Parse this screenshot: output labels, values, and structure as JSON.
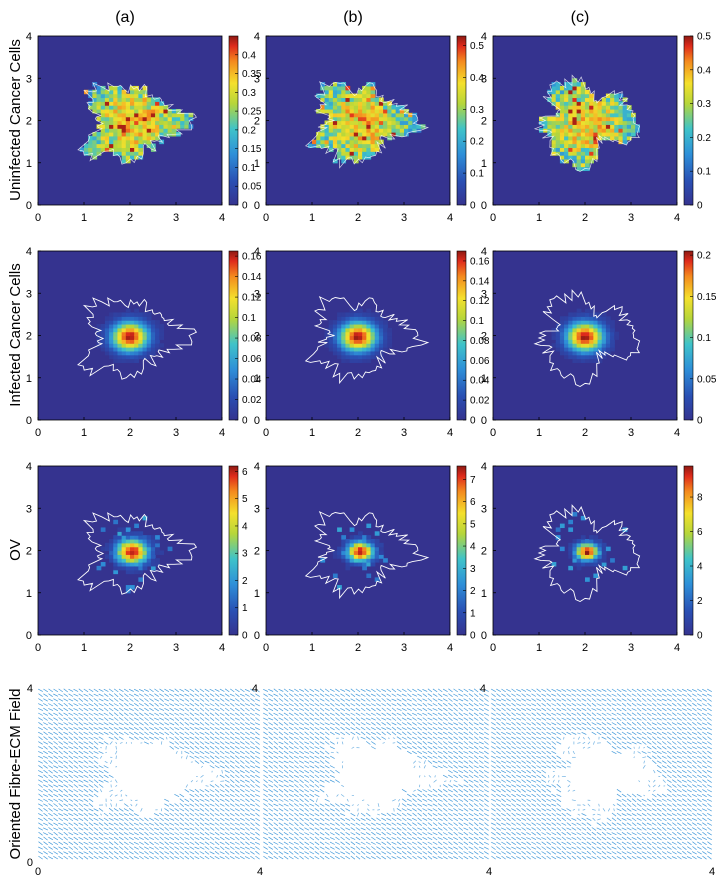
{
  "chart_data": {
    "type": "heatmap",
    "column_labels": [
      "(a)",
      "(b)",
      "(c)"
    ],
    "row_labels": [
      "Uninfected Cancer Cells",
      "Infected Cancer Cells",
      "OV",
      "Oriented Fibre-ECM Field"
    ],
    "x_ticks": [
      "0",
      "1",
      "2",
      "3",
      "4"
    ],
    "y_ticks": [
      "0",
      "1",
      "2",
      "3",
      "4"
    ],
    "xlim": [
      0,
      4
    ],
    "ylim": [
      0,
      4
    ],
    "colormap": "jet",
    "colors": {
      "background": "#35338f",
      "boundary": "#ffffff",
      "fibre": "#2f8fd6"
    },
    "heatmaps": [
      {
        "row": 0,
        "col": 0,
        "panel": "uninfected-a",
        "field": "uninfected",
        "seed": 11,
        "colorbar": {
          "min": 0,
          "max": 0.45,
          "ticks": [
            "0",
            "0.05",
            "0.1",
            "0.15",
            "0.2",
            "0.25",
            "0.3",
            "0.35",
            "0.4"
          ]
        }
      },
      {
        "row": 0,
        "col": 1,
        "panel": "uninfected-b",
        "field": "uninfected",
        "seed": 23,
        "colorbar": {
          "min": 0,
          "max": 0.53,
          "ticks": [
            "0",
            "0.1",
            "0.2",
            "0.3",
            "0.4",
            "0.5"
          ]
        }
      },
      {
        "row": 0,
        "col": 2,
        "panel": "uninfected-c",
        "field": "uninfected",
        "seed": 37,
        "colorbar": {
          "min": 0,
          "max": 0.5,
          "ticks": [
            "0",
            "0.1",
            "0.2",
            "0.3",
            "0.4",
            "0.5"
          ]
        }
      },
      {
        "row": 1,
        "col": 0,
        "panel": "infected-a",
        "field": "infected",
        "seed": 11,
        "colorbar": {
          "min": 0,
          "max": 0.165,
          "ticks": [
            "0",
            "0.02",
            "0.04",
            "0.06",
            "0.08",
            "0.1",
            "0.12",
            "0.14",
            "0.16"
          ]
        }
      },
      {
        "row": 1,
        "col": 1,
        "panel": "infected-b",
        "field": "infected",
        "seed": 23,
        "colorbar": {
          "min": 0,
          "max": 0.17,
          "ticks": [
            "0",
            "0.02",
            "0.04",
            "0.06",
            "0.08",
            "0.1",
            "0.12",
            "0.14",
            "0.16"
          ]
        }
      },
      {
        "row": 1,
        "col": 2,
        "panel": "infected-c",
        "field": "infected",
        "seed": 37,
        "colorbar": {
          "min": 0,
          "max": 0.205,
          "ticks": [
            "0",
            "0.05",
            "0.1",
            "0.15",
            "0.2"
          ]
        }
      },
      {
        "row": 2,
        "col": 0,
        "panel": "ov-a",
        "field": "ov",
        "seed": 11,
        "colorbar": {
          "min": 0,
          "max": 6.2,
          "ticks": [
            "0",
            "1",
            "2",
            "3",
            "4",
            "5",
            "6"
          ]
        }
      },
      {
        "row": 2,
        "col": 1,
        "panel": "ov-b",
        "field": "ov",
        "seed": 23,
        "colorbar": {
          "min": 0,
          "max": 7.6,
          "ticks": [
            "0",
            "1",
            "2",
            "3",
            "4",
            "5",
            "6",
            "7"
          ]
        }
      },
      {
        "row": 2,
        "col": 2,
        "panel": "ov-c",
        "field": "ov",
        "seed": 37,
        "colorbar": {
          "min": 0,
          "max": 9.8,
          "ticks": [
            "0",
            "2",
            "4",
            "6",
            "8"
          ]
        }
      }
    ],
    "fibre_panels": [
      {
        "col": 0,
        "panel": "fibre-a",
        "seed": 11,
        "x_ticks": [
          "0",
          "4"
        ],
        "y_ticks": [
          "0",
          "4"
        ]
      },
      {
        "col": 1,
        "panel": "fibre-b",
        "seed": 23,
        "x_ticks": [
          "4"
        ],
        "y_ticks": [
          "4"
        ]
      },
      {
        "col": 2,
        "panel": "fibre-c",
        "seed": 37,
        "x_ticks": [
          "4"
        ],
        "y_ticks": [
          "4"
        ]
      }
    ]
  }
}
